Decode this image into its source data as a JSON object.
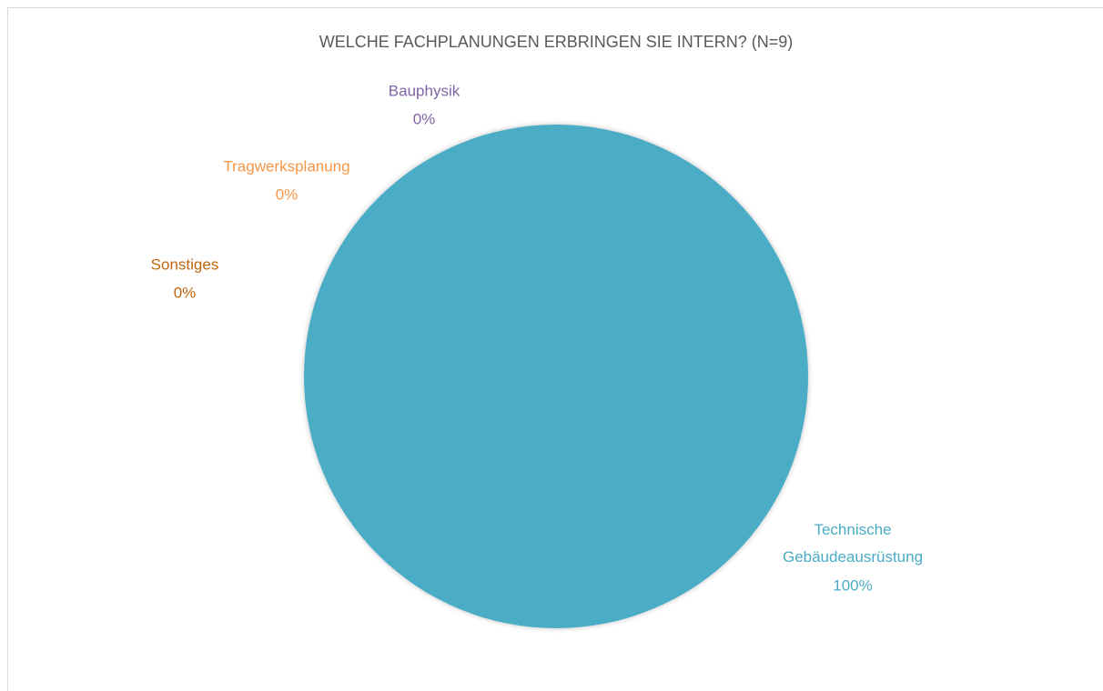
{
  "chart_data": {
    "type": "pie",
    "title": "WELCHE FACHPLANUNGEN ERBRINGEN SIE INTERN? (N=9)",
    "categories": [
      "Technische Gebäudeausrüstung",
      "Bauphysik",
      "Tragwerksplanung",
      "Sonstiges"
    ],
    "values": [
      100,
      0,
      0,
      0
    ],
    "value_labels": [
      "100%",
      "0%",
      "0%",
      "0%"
    ],
    "colors": [
      "#4bacc6",
      "#8064a2",
      "#f79646",
      "#c0650f"
    ]
  }
}
